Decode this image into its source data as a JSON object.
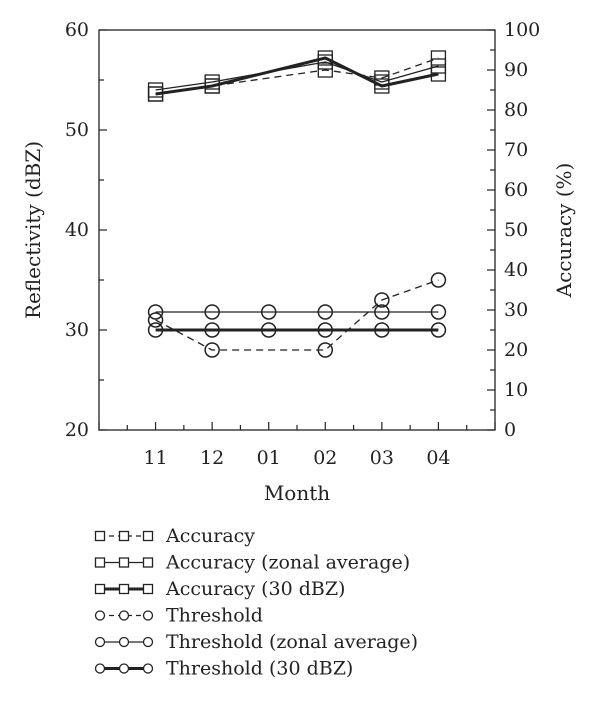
{
  "chart_data": {
    "type": "line",
    "xlabel": "Month",
    "ylabel_left": "Reflectivity (dBZ)",
    "ylabel_right": "Accuracy (%)",
    "categories": [
      "11",
      "12",
      "01",
      "02",
      "03",
      "04"
    ],
    "x_limits": [
      10,
      17
    ],
    "ylim_left": [
      20,
      60
    ],
    "ylim_right": [
      0,
      100
    ],
    "yticks_left": [
      20,
      30,
      40,
      50,
      60
    ],
    "yticks_right": [
      0,
      10,
      20,
      30,
      40,
      50,
      60,
      70,
      80,
      90,
      100
    ],
    "grid": false,
    "legend_position": "below",
    "series": [
      {
        "name": "Accuracy",
        "axis": "right",
        "marker": "square",
        "line": "dashed",
        "points": [
          [
            11,
            84
          ],
          [
            12,
            86
          ],
          [
            14,
            90
          ],
          [
            15,
            88
          ],
          [
            16,
            93
          ]
        ]
      },
      {
        "name": "Accuracy (zonal average)",
        "axis": "right",
        "marker": "square",
        "line": "thin",
        "points": [
          [
            11,
            85
          ],
          [
            12,
            87
          ],
          [
            14,
            92
          ],
          [
            15,
            87
          ],
          [
            16,
            91
          ]
        ]
      },
      {
        "name": "Accuracy (30 dBZ)",
        "axis": "right",
        "marker": "square",
        "line": "thick",
        "points": [
          [
            11,
            84
          ],
          [
            12,
            86
          ],
          [
            14,
            93
          ],
          [
            15,
            86
          ],
          [
            16,
            89
          ]
        ]
      },
      {
        "name": "Threshold",
        "axis": "left",
        "marker": "circle",
        "line": "dashed",
        "points": [
          [
            11,
            31
          ],
          [
            12,
            28
          ],
          [
            14,
            28
          ],
          [
            15,
            33
          ],
          [
            16,
            35
          ]
        ]
      },
      {
        "name": "Threshold (zonal average)",
        "axis": "left",
        "marker": "circle",
        "line": "thin",
        "points": [
          [
            11,
            31.8
          ],
          [
            12,
            31.8
          ],
          [
            13,
            31.8
          ],
          [
            14,
            31.8
          ],
          [
            15,
            31.8
          ],
          [
            16,
            31.8
          ]
        ]
      },
      {
        "name": "Threshold (30 dBZ)",
        "axis": "left",
        "marker": "circle",
        "line": "thick",
        "points": [
          [
            11,
            30
          ],
          [
            12,
            30
          ],
          [
            13,
            30
          ],
          [
            14,
            30
          ],
          [
            15,
            30
          ],
          [
            16,
            30
          ]
        ]
      }
    ]
  }
}
